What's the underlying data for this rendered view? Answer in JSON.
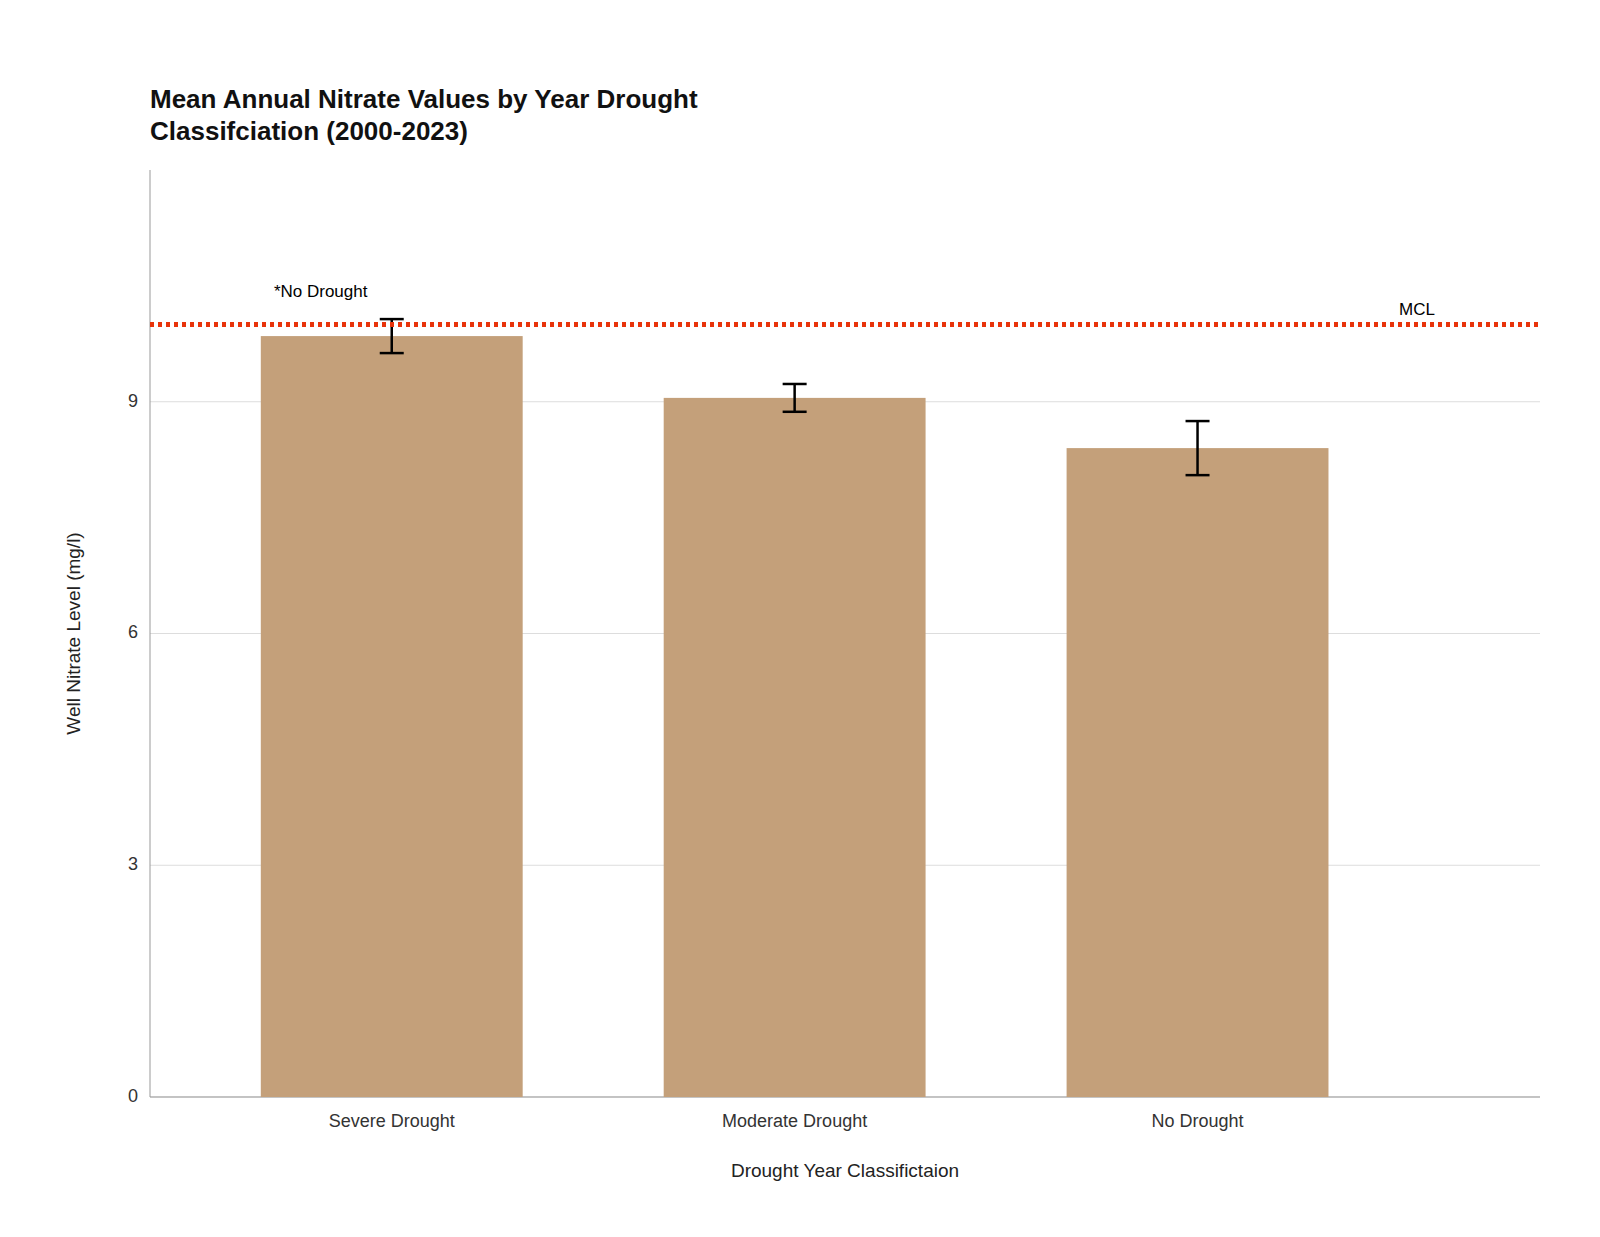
{
  "chart_data": {
    "type": "bar",
    "title": "Mean Annual Nitrate Values by Year Drought\nClassifciation (2000-2023)",
    "x_label": "Drought Year Classifictaion",
    "y_label": "Well Nitrate Level (mg/l)",
    "categories": [
      "Severe Drought",
      "Moderate Drought",
      "No Drought"
    ],
    "values": [
      9.85,
      9.05,
      8.4
    ],
    "errors": [
      0.22,
      0.18,
      0.35
    ],
    "color": "#C4A07A",
    "ylim": [
      0,
      12
    ],
    "yticks": [
      0,
      3,
      6,
      9
    ],
    "grid": true,
    "reference_lines": [
      {
        "value": 10.0,
        "label": "MCL",
        "color": "#E8330A",
        "line_style": "dotted"
      }
    ],
    "annotations": [
      {
        "text": "*No Drought",
        "category": "Severe Drought"
      }
    ]
  }
}
